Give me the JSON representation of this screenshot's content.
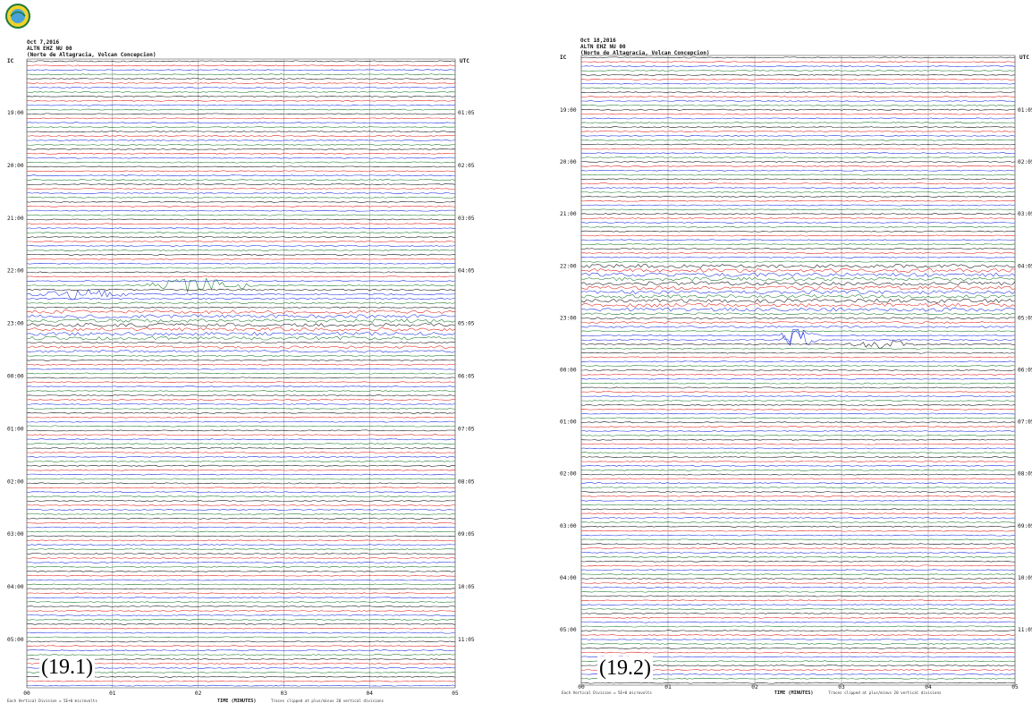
{
  "logo": {
    "icon": "ineter-logo-icon"
  },
  "colors": {
    "black": "#111111",
    "red": "#e0201a",
    "blue": "#1a2de0",
    "green": "#1a7a2a",
    "grid": "#9a9a9a"
  },
  "panels": [
    {
      "figure_label": "(19.1)",
      "date_line": "Oct 7,2016",
      "station_line": "ALTN EHZ NU 00",
      "place_line": "(Norte de Altagracia, Volcan Concepcion)",
      "left_axis_label": "IC",
      "right_axis_label": "UTC",
      "footer_scale": "Each Vertical Division =  5E+0 microvolts",
      "footer_note": "Traces clipped at plus/minus 20 vertical divisions",
      "time_axis_label": "TIME (MINUTES)",
      "x_ticks": [
        "00",
        "01",
        "02",
        "03",
        "04",
        "05"
      ],
      "left_time_ticks": [
        "19:00",
        "20:00",
        "21:00",
        "22:00",
        "23:00",
        "00:00",
        "01:00",
        "02:00",
        "03:00",
        "04:00",
        "05:00"
      ],
      "right_time_ticks": [
        "01:05",
        "02:05",
        "03:05",
        "04:05",
        "05:05",
        "06:05",
        "07:05",
        "08:05",
        "09:05",
        "10:05",
        "11:05"
      ]
    },
    {
      "figure_label": "(19.2)",
      "date_line": "Oct 18,2016",
      "station_line": "ALTN EHZ NU 00",
      "place_line": "(Norte de Altagracia, Volcan Concepcion)",
      "left_axis_label": "IC",
      "right_axis_label": "UTC",
      "footer_scale": "Each Vertical Division =  5E+0 microvolts",
      "footer_note": "Traces clipped at plus/minus 20 vertical divisions",
      "time_axis_label": "TIME (MINUTES)",
      "x_ticks": [
        "00",
        "01",
        "02",
        "03",
        "04",
        "05"
      ],
      "left_time_ticks": [
        "19:00",
        "20:00",
        "21:00",
        "22:00",
        "23:00",
        "00:00",
        "01:00",
        "02:00",
        "03:00",
        "04:00",
        "05:00"
      ],
      "right_time_ticks": [
        "01:05",
        "02:05",
        "03:05",
        "04:05",
        "05:05",
        "06:05",
        "07:05",
        "08:05",
        "09:05",
        "10:05",
        "11:05"
      ]
    }
  ],
  "chart_data": [
    {
      "type": "line",
      "x_label": "TIME (MINUTES)",
      "xlim": [
        0,
        5
      ],
      "x_ticks": [
        "00",
        "01",
        "02",
        "03",
        "04",
        "05"
      ],
      "traces_per_hour": 12,
      "trace_color_cycle": [
        "black",
        "red",
        "blue",
        "green"
      ],
      "hours_left": [
        "19:00",
        "20:00",
        "21:00",
        "22:00",
        "23:00",
        "00:00",
        "01:00",
        "02:00",
        "03:00",
        "04:00",
        "05:00"
      ],
      "hours_right": [
        "01:05",
        "02:05",
        "03:05",
        "04:05",
        "05:05",
        "06:05",
        "07:05",
        "08:05",
        "09:05",
        "10:05",
        "11:05"
      ]
    },
    {
      "type": "line",
      "x_label": "TIME (MINUTES)",
      "xlim": [
        0,
        5
      ],
      "x_ticks": [
        "00",
        "01",
        "02",
        "03",
        "04",
        "05"
      ],
      "traces_per_hour": 12,
      "trace_color_cycle": [
        "black",
        "red",
        "blue",
        "green"
      ],
      "hours_left": [
        "19:00",
        "20:00",
        "21:00",
        "22:00",
        "23:00",
        "00:00",
        "01:00",
        "02:00",
        "03:00",
        "04:00",
        "05:00"
      ],
      "hours_right": [
        "01:05",
        "02:05",
        "03:05",
        "04:05",
        "05:05",
        "06:05",
        "07:05",
        "08:05",
        "09:05",
        "10:05",
        "11:05"
      ]
    }
  ]
}
